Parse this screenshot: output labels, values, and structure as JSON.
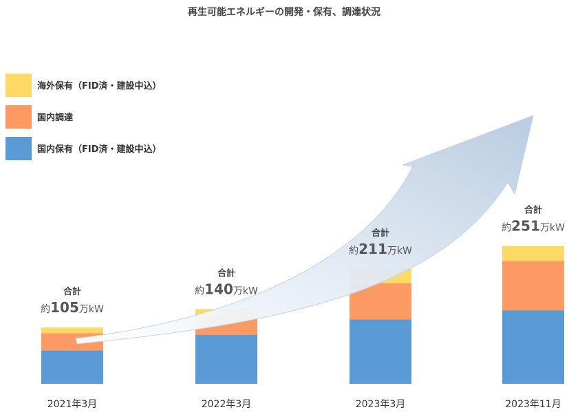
{
  "chart_data": {
    "type": "bar",
    "stacked": true,
    "title": "再生可能エネルギーの開発・保有、調達状況",
    "categories": [
      "2021年3月",
      "2022年3月",
      "2023年3月",
      "2023年11月"
    ],
    "series": [
      {
        "name": "国内保有（FID済・建設中込）",
        "color": "#5b9bd5",
        "values": [
          58,
          85,
          112,
          128
        ]
      },
      {
        "name": "国内調達",
        "color": "#fd9a63",
        "values": [
          30,
          30,
          63,
          86
        ]
      },
      {
        "name": "海外保有（FID済・建設中込）",
        "color": "#ffd966",
        "values": [
          10,
          15,
          25,
          26
        ]
      }
    ],
    "totals": [
      {
        "label": "合計",
        "prefix": "約",
        "value": "105",
        "unit": "万kW"
      },
      {
        "label": "合計",
        "prefix": "約",
        "value": "140",
        "unit": "万kW"
      },
      {
        "label": "合計",
        "prefix": "約",
        "value": "211",
        "unit": "万kW"
      },
      {
        "label": "合計",
        "prefix": "約",
        "value": "251",
        "unit": "万kW"
      }
    ],
    "legend_order": [
      2,
      1,
      0
    ],
    "legend_position": "left",
    "annotation": "growth-arrow",
    "grid": false
  }
}
